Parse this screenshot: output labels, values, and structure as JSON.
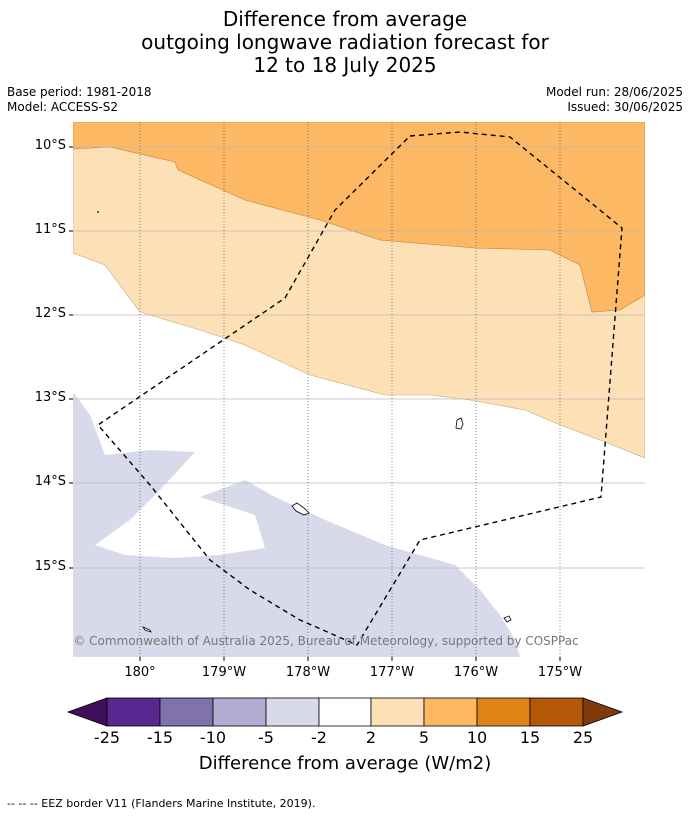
{
  "title": {
    "line1": "Difference from average",
    "line2": "outgoing longwave radiation forecast for",
    "line3": "12 to 18 July 2025"
  },
  "meta": {
    "base_period": "Base period: 1981-2018",
    "model": "Model: ACCESS-S2",
    "model_run": "Model run: 28/06/2025",
    "issued": "Issued: 30/06/2025"
  },
  "map": {
    "lat_labels": [
      "10°S",
      "11°S",
      "12°S",
      "13°S",
      "14°S",
      "15°S"
    ],
    "lon_labels": [
      "180°",
      "179°W",
      "178°W",
      "177°W",
      "176°W",
      "175°W"
    ],
    "copyright": "© Commonwealth of Australia 2025, Bureau of Meteorology, supported by COSPPac"
  },
  "colorbar": {
    "ticks": [
      "-25",
      "-15",
      "-10",
      "-5",
      "-2",
      "2",
      "5",
      "10",
      "15",
      "25"
    ],
    "colors": [
      "#3f0f5c",
      "#5a2690",
      "#8073ad",
      "#b2abd2",
      "#d8daeb",
      "#ffffff",
      "#fee0b6",
      "#fdb863",
      "#e08214",
      "#b35806",
      "#7f3b08"
    ],
    "label": "Difference from average (W/m2)"
  },
  "footer": "--  --  -- EEZ border V11 (Flanders Marine Institute, 2019)."
}
